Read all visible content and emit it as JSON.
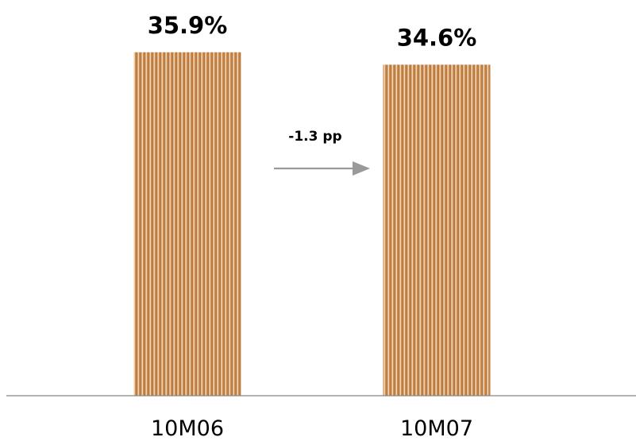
{
  "chart_data": {
    "type": "bar",
    "categories": [
      "10M06",
      "10M07"
    ],
    "values": [
      35.9,
      34.6
    ],
    "value_labels": [
      "35.9%",
      "34.6%"
    ],
    "unit": "%",
    "annotation": "-1.3 pp",
    "bar_color": "#c8844a",
    "bar_stripe_color": "#f0c89c",
    "arrow_color": "#9a9a9a",
    "axis_color": "#888888",
    "grid": false
  }
}
